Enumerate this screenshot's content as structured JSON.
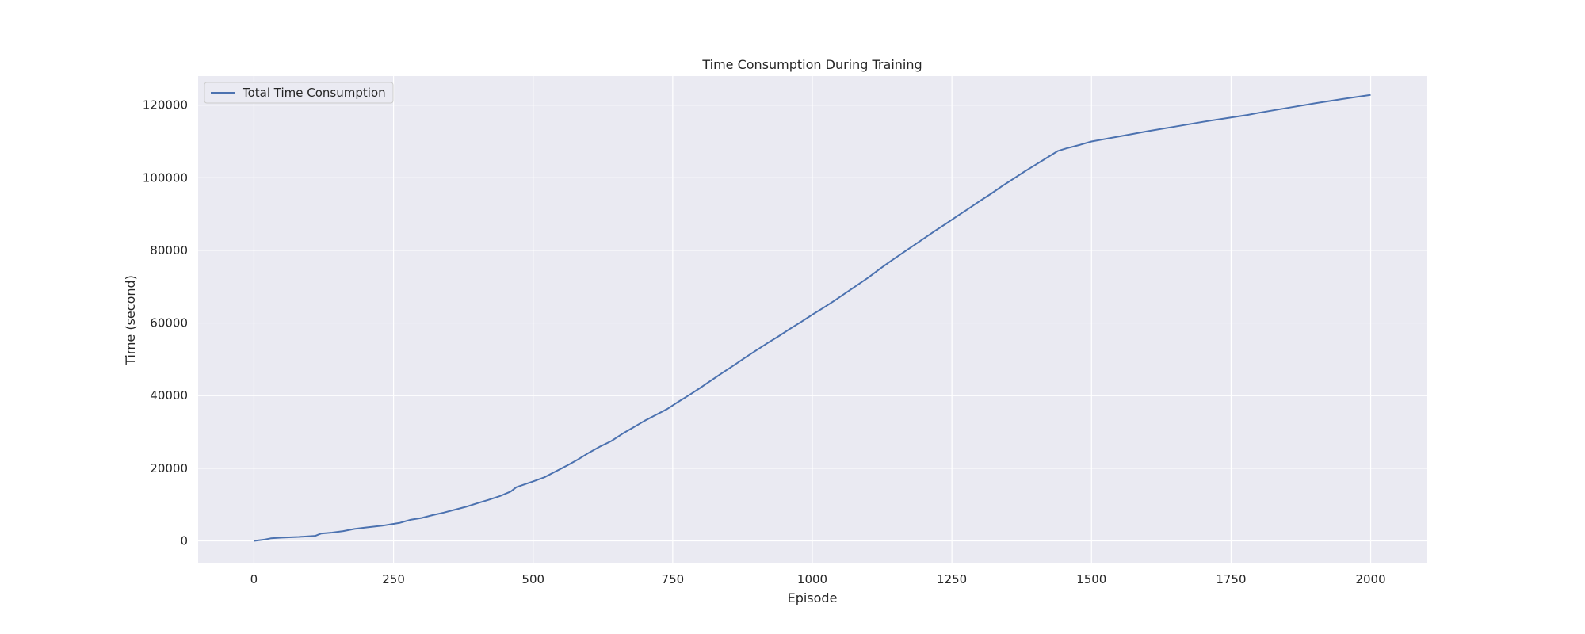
{
  "chart_data": {
    "type": "line",
    "title": "Time Consumption During Training",
    "xlabel": "Episode",
    "ylabel": "Time (second)",
    "xlim": [
      -100,
      2100
    ],
    "ylim": [
      -6000,
      128000
    ],
    "xticks": [
      0,
      250,
      500,
      750,
      1000,
      1250,
      1500,
      1750,
      2000
    ],
    "yticks": [
      0,
      20000,
      40000,
      60000,
      80000,
      100000,
      120000
    ],
    "grid": true,
    "background_color": "#eaeaf2",
    "grid_color": "#ffffff",
    "legend": {
      "position": "upper-left"
    },
    "series": [
      {
        "name": "Total Time Consumption",
        "color": "#4c72b0",
        "points": [
          [
            0,
            0
          ],
          [
            10,
            200
          ],
          [
            20,
            400
          ],
          [
            30,
            700
          ],
          [
            50,
            900
          ],
          [
            80,
            1100
          ],
          [
            110,
            1400
          ],
          [
            120,
            2000
          ],
          [
            140,
            2300
          ],
          [
            160,
            2700
          ],
          [
            180,
            3300
          ],
          [
            200,
            3700
          ],
          [
            230,
            4200
          ],
          [
            250,
            4700
          ],
          [
            262,
            5000
          ],
          [
            280,
            5800
          ],
          [
            300,
            6300
          ],
          [
            320,
            7100
          ],
          [
            340,
            7800
          ],
          [
            360,
            8600
          ],
          [
            380,
            9400
          ],
          [
            400,
            10400
          ],
          [
            420,
            11300
          ],
          [
            440,
            12300
          ],
          [
            460,
            13600
          ],
          [
            470,
            14800
          ],
          [
            500,
            16400
          ],
          [
            520,
            17500
          ],
          [
            540,
            19100
          ],
          [
            560,
            20700
          ],
          [
            580,
            22400
          ],
          [
            600,
            24300
          ],
          [
            620,
            26000
          ],
          [
            640,
            27500
          ],
          [
            660,
            29500
          ],
          [
            680,
            31300
          ],
          [
            700,
            33100
          ],
          [
            720,
            34700
          ],
          [
            740,
            36300
          ],
          [
            760,
            38300
          ],
          [
            780,
            40200
          ],
          [
            800,
            42200
          ],
          [
            820,
            44300
          ],
          [
            840,
            46400
          ],
          [
            860,
            48400
          ],
          [
            880,
            50500
          ],
          [
            900,
            52500
          ],
          [
            920,
            54500
          ],
          [
            940,
            56400
          ],
          [
            960,
            58400
          ],
          [
            980,
            60300
          ],
          [
            1000,
            62300
          ],
          [
            1020,
            64200
          ],
          [
            1040,
            66200
          ],
          [
            1060,
            68300
          ],
          [
            1080,
            70400
          ],
          [
            1100,
            72500
          ],
          [
            1120,
            74800
          ],
          [
            1140,
            77000
          ],
          [
            1160,
            79100
          ],
          [
            1180,
            81200
          ],
          [
            1200,
            83300
          ],
          [
            1220,
            85400
          ],
          [
            1240,
            87400
          ],
          [
            1260,
            89500
          ],
          [
            1280,
            91500
          ],
          [
            1300,
            93600
          ],
          [
            1320,
            95600
          ],
          [
            1340,
            97700
          ],
          [
            1360,
            99700
          ],
          [
            1380,
            101700
          ],
          [
            1400,
            103600
          ],
          [
            1420,
            105500
          ],
          [
            1440,
            107400
          ],
          [
            1455,
            108100
          ],
          [
            1480,
            109100
          ],
          [
            1500,
            110000
          ],
          [
            1550,
            111400
          ],
          [
            1600,
            112800
          ],
          [
            1650,
            114100
          ],
          [
            1700,
            115400
          ],
          [
            1750,
            116600
          ],
          [
            1780,
            117300
          ],
          [
            1800,
            117900
          ],
          [
            1850,
            119200
          ],
          [
            1900,
            120500
          ],
          [
            1950,
            121700
          ],
          [
            2000,
            122800
          ]
        ]
      }
    ]
  }
}
